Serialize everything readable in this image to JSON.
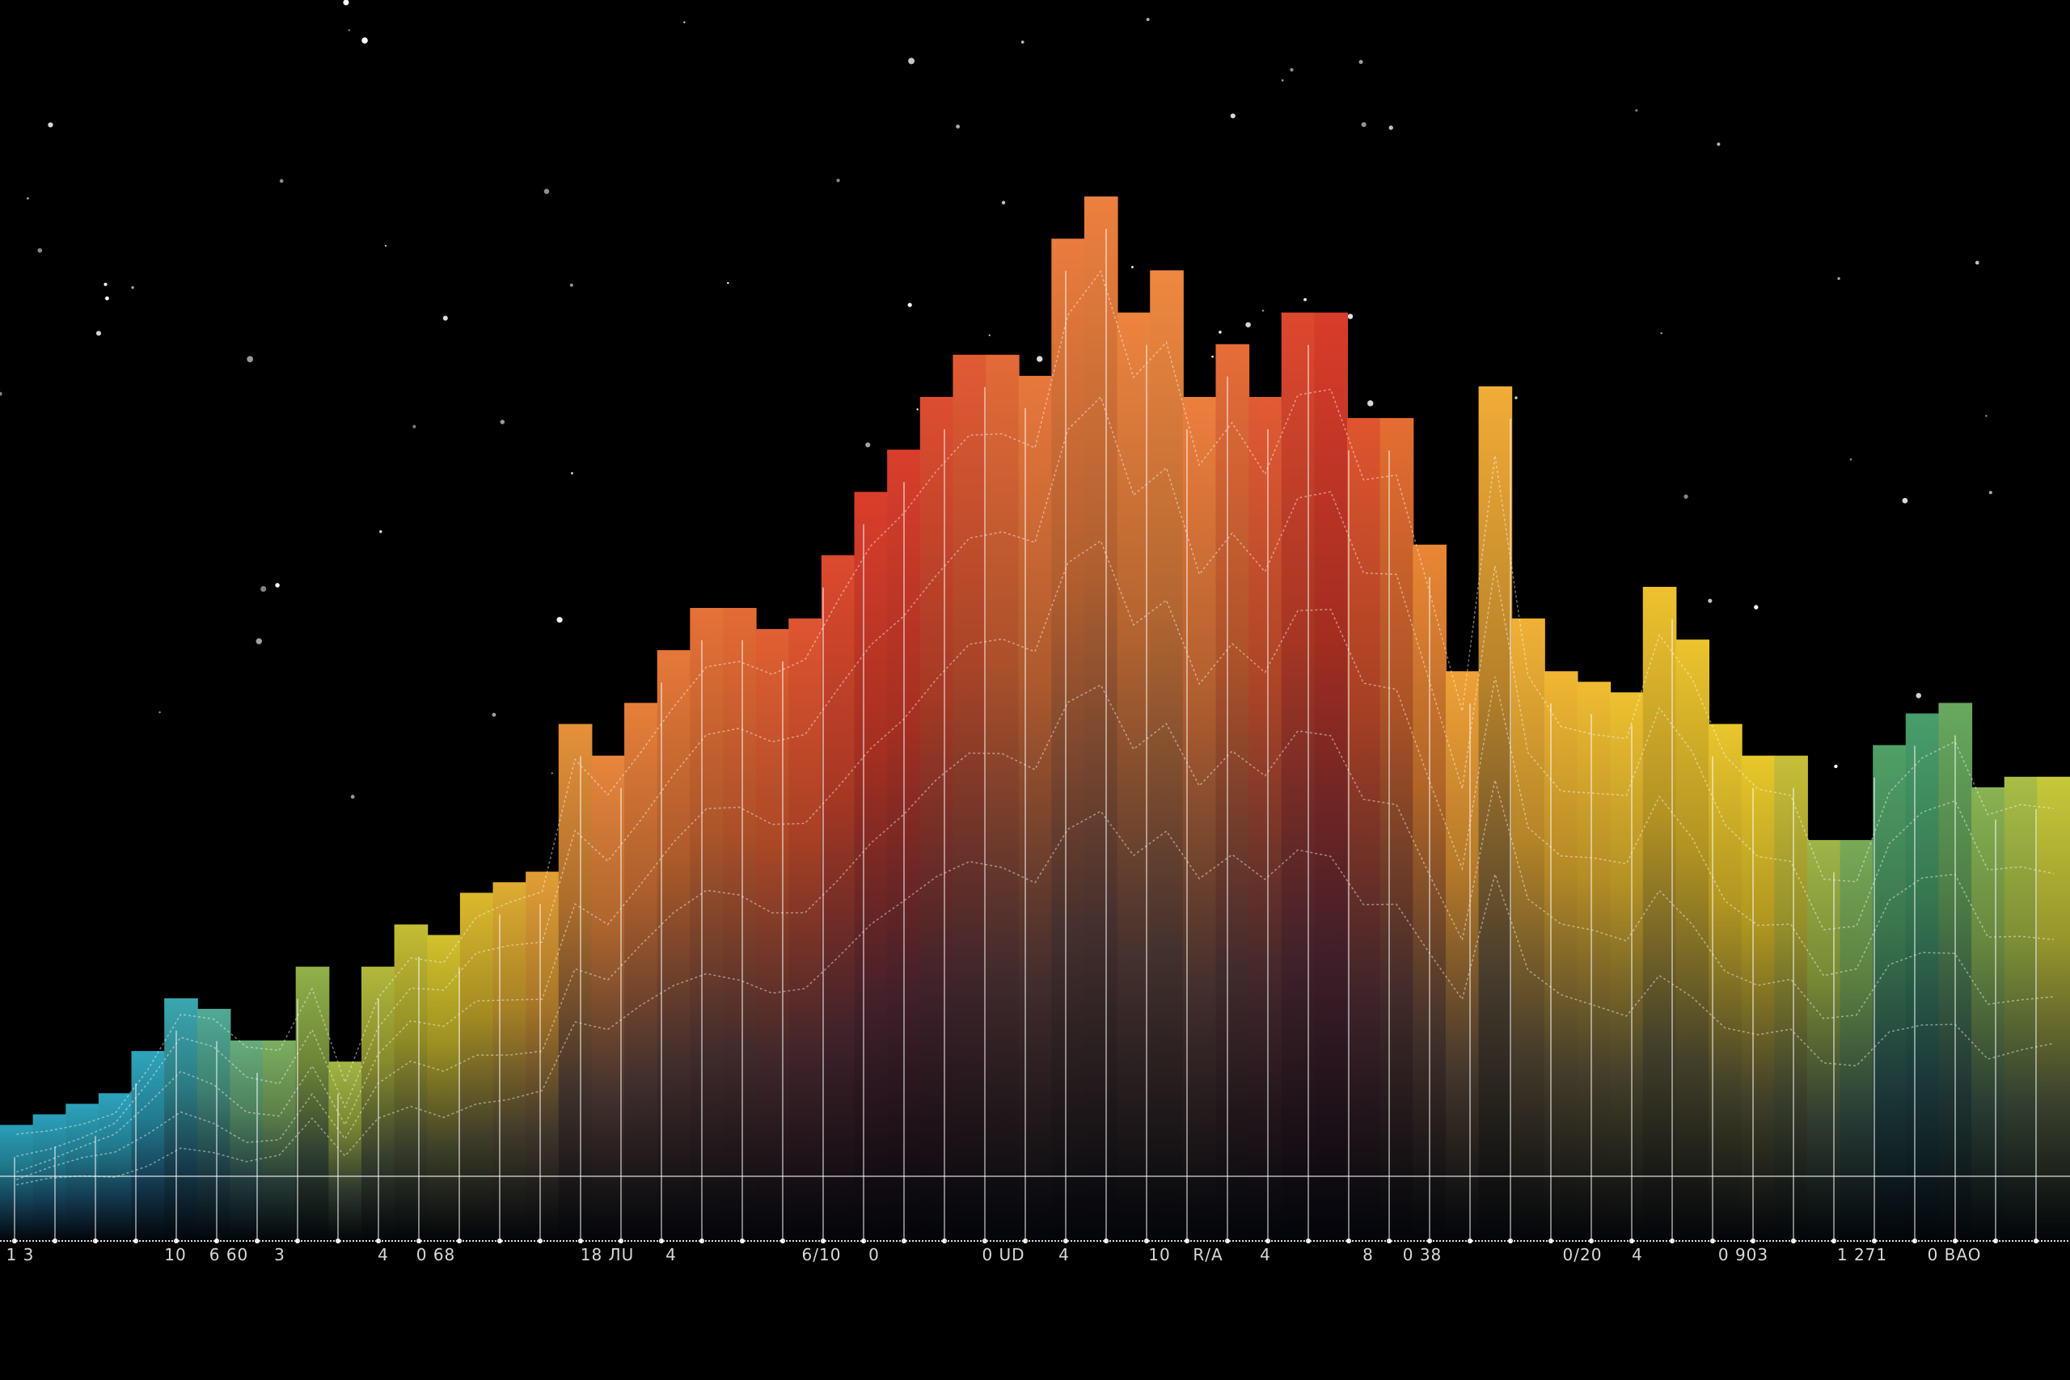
{
  "chart_data": {
    "type": "bar",
    "title": "",
    "xlabel": "",
    "ylabel": "",
    "grid": true,
    "legend": "none",
    "ylim": [
      0,
      100
    ],
    "x_tick_labels": [
      "1 3",
      "10",
      "6 60",
      "3",
      "4",
      "0 68",
      "18 ЛU",
      "4",
      "6/10",
      "0",
      "0 UD",
      "4",
      "10",
      "R/A",
      "4",
      "8",
      "0 38",
      "0/20",
      "4",
      "0 903",
      "1 271",
      "0 BAO"
    ],
    "values": [
      11,
      12,
      13,
      14,
      18,
      23,
      22,
      19,
      19,
      26,
      17,
      26,
      30,
      29,
      33,
      34,
      35,
      49,
      46,
      51,
      56,
      60,
      60,
      58,
      59,
      65,
      71,
      75,
      80,
      84,
      84,
      82,
      95,
      99,
      88,
      92,
      80,
      85,
      80,
      88,
      88,
      78,
      78,
      66,
      54,
      81,
      59,
      54,
      53,
      52,
      62,
      57,
      49,
      46,
      46,
      38,
      38,
      47,
      50,
      51,
      43,
      44,
      44
    ],
    "color_stops": [
      "#2aa0b8",
      "#2fa6bf",
      "#8fb04a",
      "#d8c22a",
      "#e8883c",
      "#e56a35",
      "#d8382a",
      "#e8783c",
      "#f08a40",
      "#d8382a",
      "#f2a838",
      "#f0c030",
      "#e8c82a",
      "#3a9a70",
      "#c8c83a"
    ],
    "background": "#000000"
  }
}
